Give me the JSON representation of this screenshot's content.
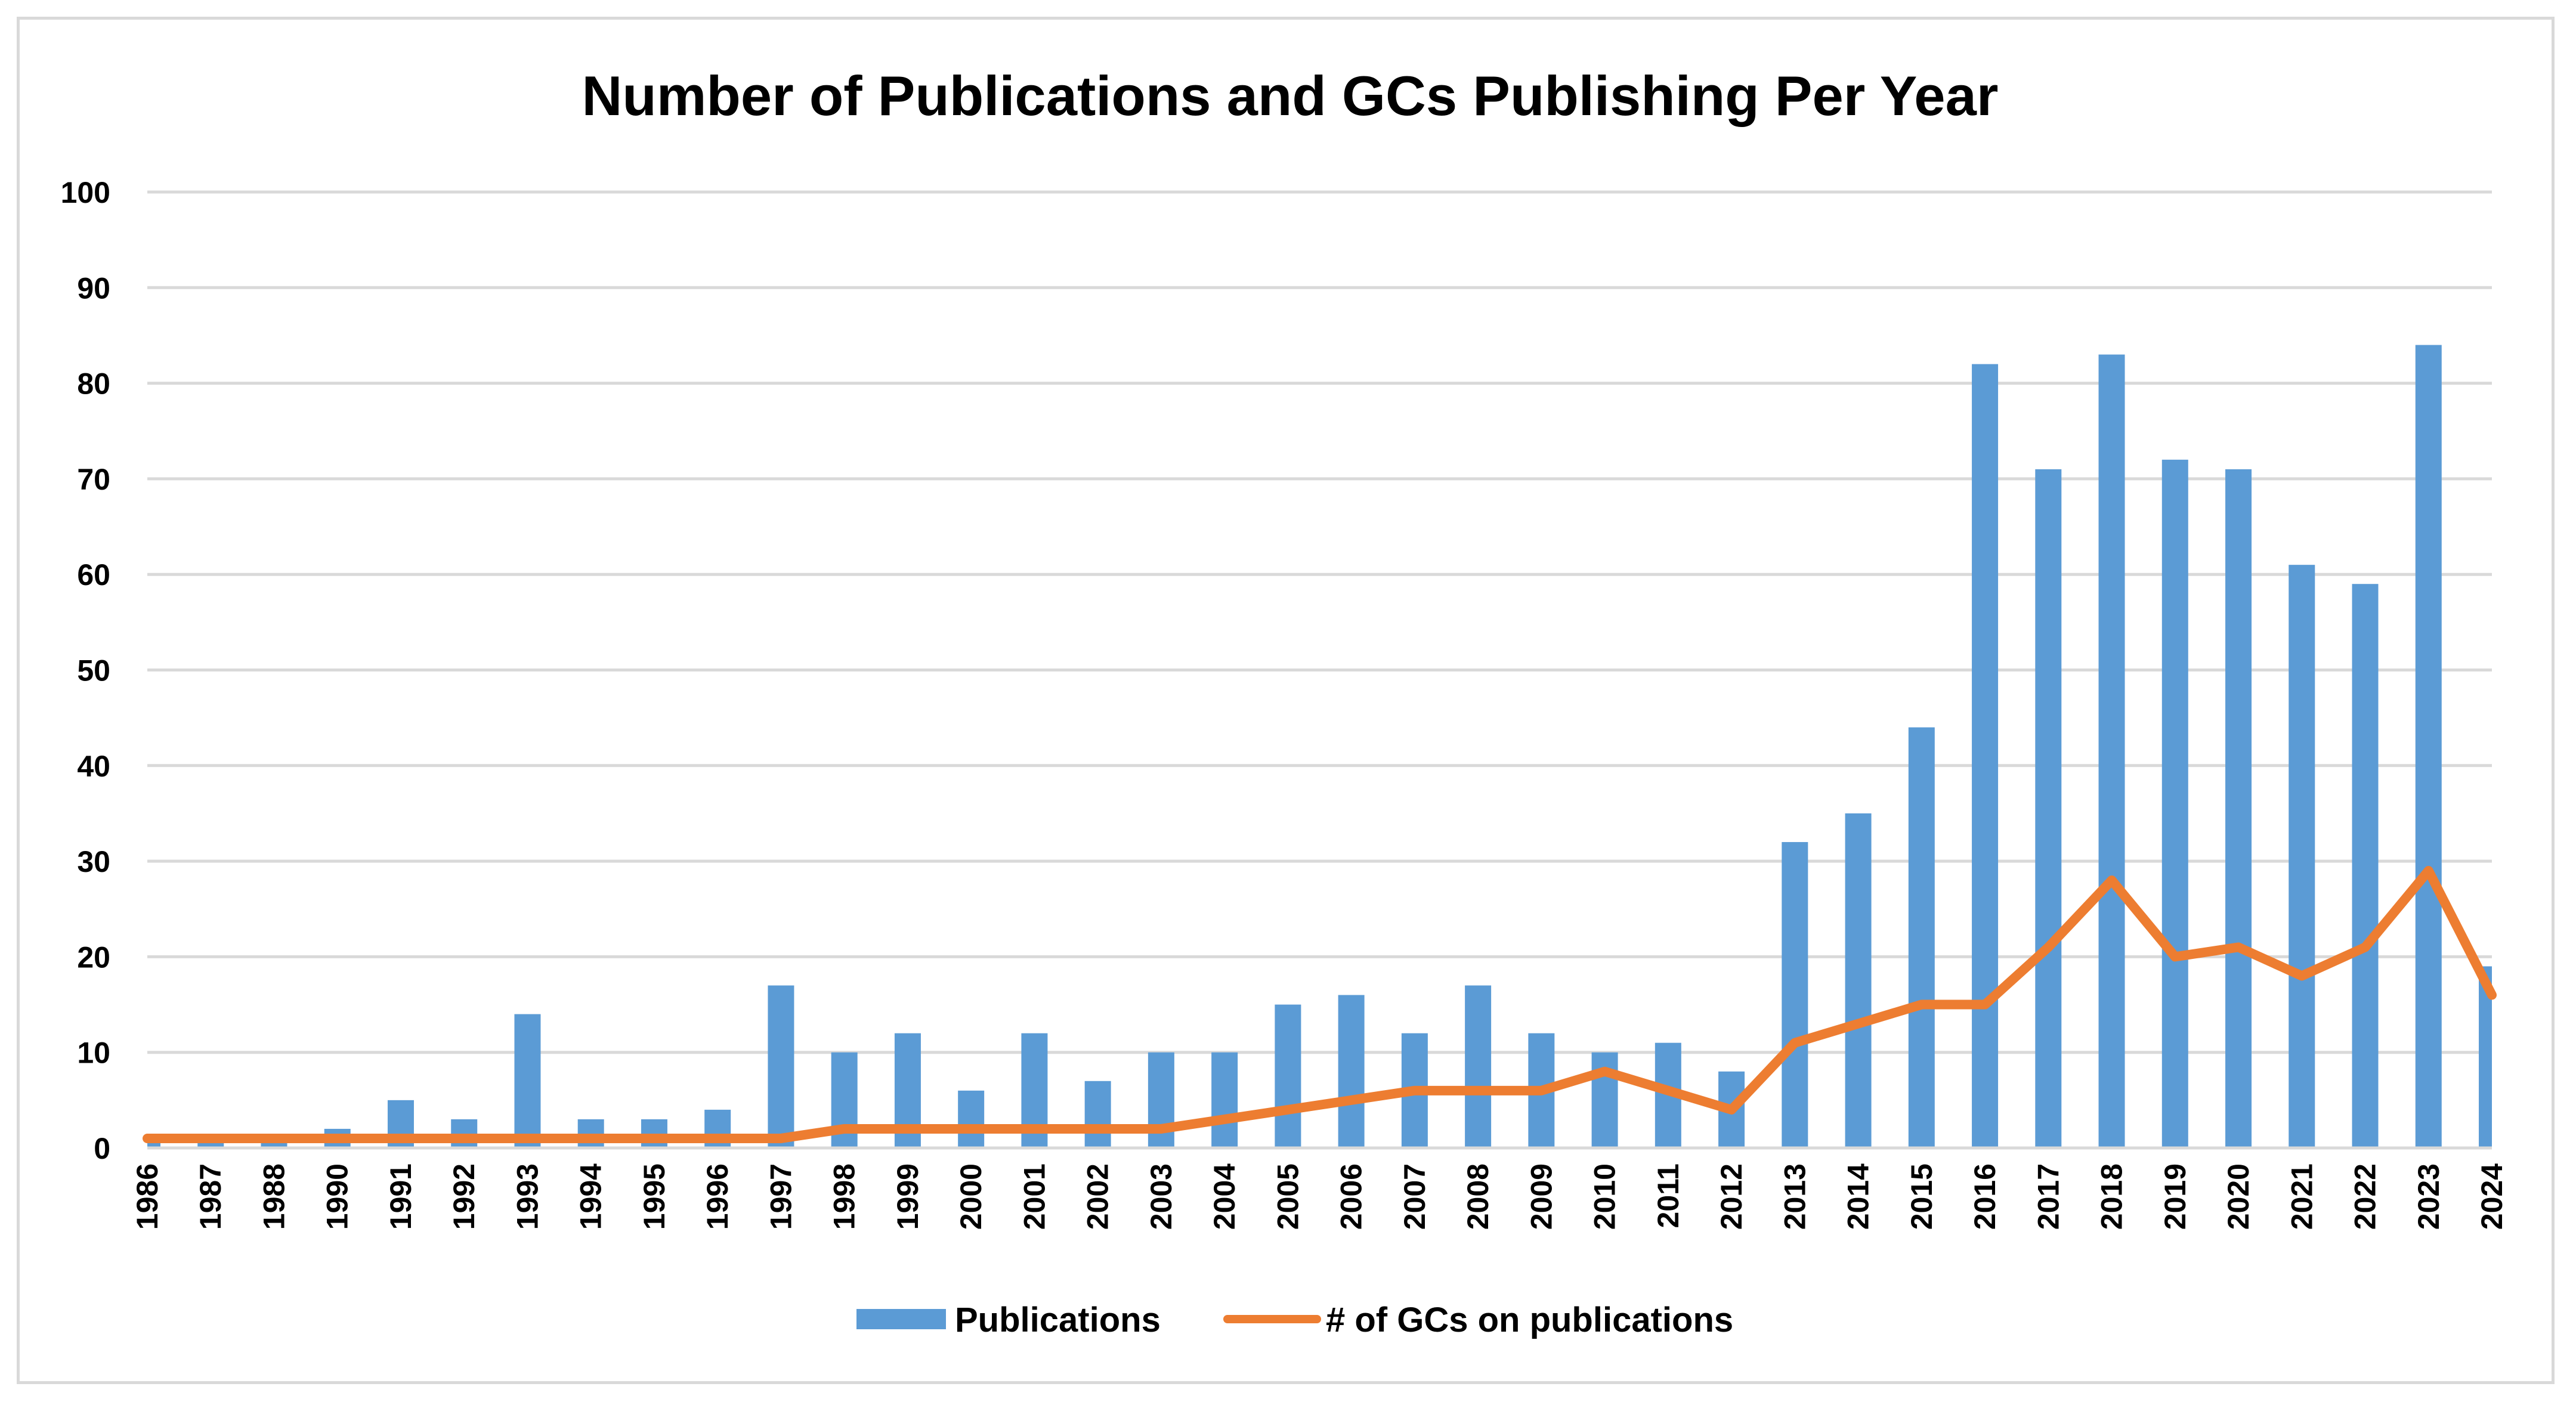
{
  "chart_data": {
    "type": "bar",
    "title": "Number of Publications and GCs Publishing Per Year",
    "xlabel": "",
    "ylabel": "",
    "ylim": [
      0,
      100
    ],
    "yticks": [
      0,
      10,
      20,
      30,
      40,
      50,
      60,
      70,
      80,
      90,
      100
    ],
    "grid": true,
    "legend_position": "bottom",
    "categories": [
      "1986",
      "1987",
      "1988",
      "1990",
      "1991",
      "1992",
      "1993",
      "1994",
      "1995",
      "1996",
      "1997",
      "1998",
      "1999",
      "2000",
      "2001",
      "2002",
      "2003",
      "2004",
      "2005",
      "2006",
      "2007",
      "2008",
      "2009",
      "2010",
      "2011",
      "2012",
      "2013",
      "2014",
      "2015",
      "2016",
      "2017",
      "2018",
      "2019",
      "2020",
      "2021",
      "2022",
      "2023",
      "2024"
    ],
    "series": [
      {
        "name": "Publications",
        "type": "bar",
        "color": "#5b9bd5",
        "values": [
          1,
          1,
          1,
          2,
          5,
          3,
          14,
          3,
          3,
          4,
          17,
          10,
          12,
          6,
          12,
          7,
          10,
          10,
          15,
          16,
          12,
          17,
          12,
          10,
          11,
          8,
          32,
          35,
          44,
          82,
          71,
          83,
          72,
          71,
          61,
          59,
          84,
          19
        ]
      },
      {
        "name": "# of GCs on publications",
        "type": "line",
        "color": "#ed7d31",
        "values": [
          1,
          1,
          1,
          1,
          1,
          1,
          1,
          1,
          1,
          1,
          1,
          2,
          2,
          2,
          2,
          2,
          2,
          3,
          4,
          5,
          6,
          6,
          6,
          8,
          6,
          4,
          11,
          13,
          15,
          15,
          21,
          28,
          20,
          21,
          18,
          21,
          29,
          16
        ]
      }
    ]
  }
}
